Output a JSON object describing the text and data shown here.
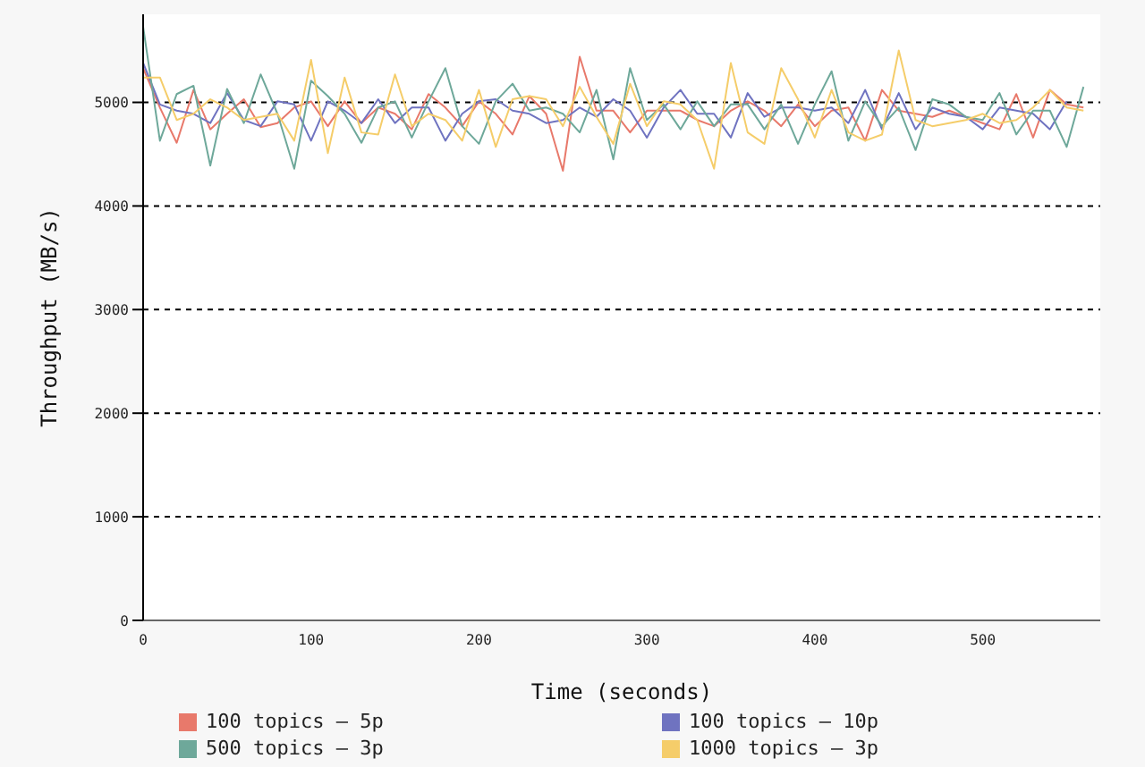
{
  "chart_data": {
    "type": "line",
    "xlabel": "Time (seconds)",
    "ylabel": "Throughput (MB/s)",
    "x": [
      0,
      10,
      20,
      30,
      40,
      50,
      60,
      70,
      80,
      90,
      100,
      110,
      120,
      130,
      140,
      150,
      160,
      170,
      180,
      190,
      200,
      210,
      220,
      230,
      240,
      250,
      260,
      270,
      280,
      290,
      300,
      310,
      320,
      330,
      340,
      350,
      360,
      370,
      380,
      390,
      400,
      410,
      420,
      430,
      440,
      450,
      460,
      470,
      480,
      490,
      500,
      510,
      520,
      530,
      540,
      550,
      560
    ],
    "xlim": [
      0,
      570
    ],
    "xticks": [
      0,
      100,
      200,
      300,
      400,
      500
    ],
    "ylim": [
      0,
      5850
    ],
    "yticks": [
      0,
      1000,
      2000,
      3000,
      4000,
      5000
    ],
    "grid": "y",
    "legend": "bottom",
    "marker": "none",
    "line_style": "solid",
    "series": [
      {
        "name": "100 topics – 5p",
        "color": "#e8796b",
        "values": [
          5330,
          4950,
          4610,
          5120,
          4740,
          4890,
          5030,
          4760,
          4800,
          4950,
          5010,
          4770,
          5010,
          4800,
          4950,
          4890,
          4740,
          5080,
          4950,
          4770,
          5010,
          4890,
          4690,
          5060,
          4890,
          4340,
          5440,
          4920,
          4920,
          4710,
          4920,
          4920,
          4920,
          4830,
          4770,
          4920,
          5010,
          4920,
          4770,
          4980,
          4770,
          4920,
          4950,
          4630,
          5120,
          4920,
          4890,
          4860,
          4920,
          4860,
          4800,
          4740,
          5080,
          4660,
          5120,
          4980,
          4950
        ]
      },
      {
        "name": "100 topics – 10p",
        "color": "#6f73c0",
        "values": [
          5380,
          4980,
          4920,
          4890,
          4800,
          5090,
          4830,
          4770,
          5010,
          4980,
          4630,
          5010,
          4920,
          4800,
          5030,
          4800,
          4950,
          4950,
          4630,
          4890,
          5010,
          5030,
          4920,
          4890,
          4800,
          4830,
          4950,
          4860,
          5030,
          4920,
          4660,
          4950,
          5120,
          4890,
          4890,
          4660,
          5090,
          4860,
          4950,
          4950,
          4920,
          4950,
          4800,
          5120,
          4740,
          5090,
          4740,
          4950,
          4890,
          4860,
          4740,
          4950,
          4920,
          4890,
          4740,
          5010,
          null
        ]
      },
      {
        "name": "500 topics – 3p",
        "color": "#6ea89a",
        "values": [
          5730,
          4630,
          5080,
          5160,
          4390,
          5130,
          4800,
          5270,
          4890,
          4360,
          5210,
          5060,
          4890,
          4610,
          4950,
          5010,
          4660,
          5010,
          5330,
          4770,
          4600,
          5010,
          5180,
          4920,
          4950,
          4890,
          4710,
          5120,
          4450,
          5330,
          4830,
          4980,
          4740,
          5010,
          4770,
          4980,
          4980,
          4740,
          4980,
          4600,
          4980,
          5300,
          4630,
          5010,
          4770,
          4950,
          4540,
          5030,
          4980,
          4860,
          4830,
          5090,
          4690,
          4920,
          4920,
          4570,
          5150
        ]
      },
      {
        "name": "1000 topics – 3p",
        "color": "#f5cd6a",
        "values": [
          5240,
          5240,
          4830,
          4890,
          5030,
          4950,
          4830,
          4860,
          4890,
          4630,
          5410,
          4510,
          5240,
          4710,
          4690,
          5270,
          4770,
          4890,
          4830,
          4630,
          5120,
          4570,
          5030,
          5060,
          5030,
          4770,
          5150,
          4860,
          4600,
          5180,
          4770,
          5010,
          4980,
          4830,
          4360,
          5380,
          4710,
          4600,
          5330,
          5030,
          4660,
          5120,
          4710,
          4630,
          4690,
          5500,
          4830,
          4770,
          4800,
          4830,
          4890,
          4800,
          4830,
          4950,
          5120,
          4950,
          4920
        ]
      }
    ]
  }
}
